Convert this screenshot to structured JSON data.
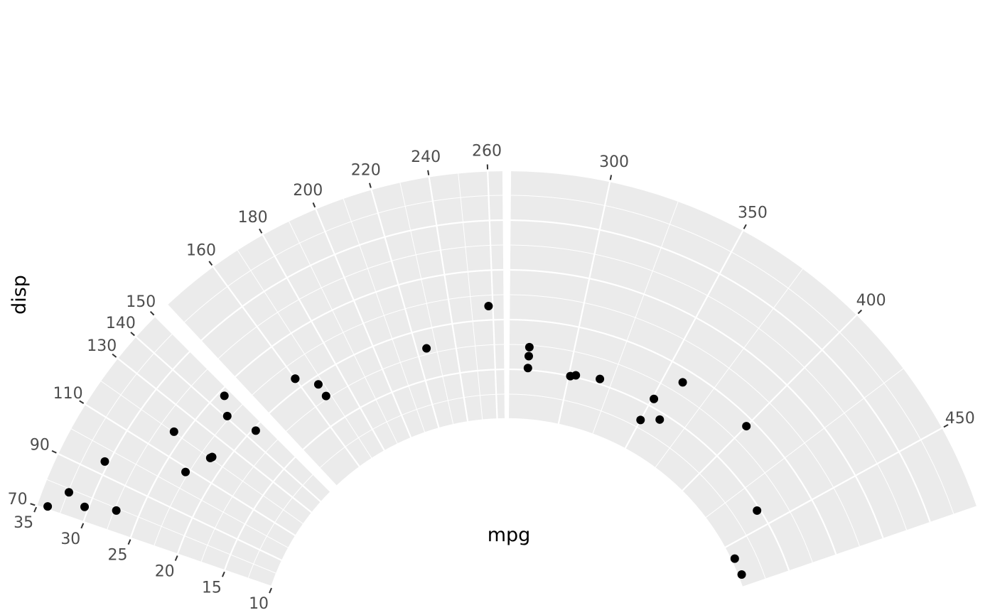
{
  "chart_data": {
    "type": "scatter",
    "coord": "polar (partial, radial-axis discontinuity)",
    "xlabel": "mpg",
    "ylabel": "disp",
    "theta_axis_label": "disp",
    "radial_axis_label": "mpg",
    "theta_breaks": [
      70,
      90,
      110,
      130,
      150,
      140,
      160,
      180,
      200,
      220,
      240,
      260,
      300,
      350,
      400,
      450
    ],
    "r_breaks": [
      35,
      30,
      25,
      20,
      15,
      10
    ],
    "grid": true,
    "background": "#ebebeb",
    "point_color": "#000000",
    "points": [
      {
        "x": 160,
        "y": 21.0
      },
      {
        "x": 160,
        "y": 21.0
      },
      {
        "x": 108,
        "y": 22.8
      },
      {
        "x": 258,
        "y": 21.4
      },
      {
        "x": 360,
        "y": 18.7
      },
      {
        "x": 225,
        "y": 18.1
      },
      {
        "x": 360,
        "y": 14.3
      },
      {
        "x": 146.7,
        "y": 24.4
      },
      {
        "x": 140.8,
        "y": 22.8
      },
      {
        "x": 167.6,
        "y": 19.2
      },
      {
        "x": 167.6,
        "y": 17.8
      },
      {
        "x": 275.8,
        "y": 16.4
      },
      {
        "x": 275.8,
        "y": 17.3
      },
      {
        "x": 275.8,
        "y": 15.2
      },
      {
        "x": 472,
        "y": 10.4
      },
      {
        "x": 460,
        "y": 10.4
      },
      {
        "x": 440,
        "y": 14.7
      },
      {
        "x": 78.7,
        "y": 32.4
      },
      {
        "x": 75.7,
        "y": 30.4
      },
      {
        "x": 71.1,
        "y": 33.9
      },
      {
        "x": 120.1,
        "y": 21.5
      },
      {
        "x": 318,
        "y": 15.5
      },
      {
        "x": 304,
        "y": 15.2
      },
      {
        "x": 350,
        "y": 13.3
      },
      {
        "x": 400,
        "y": 19.2
      },
      {
        "x": 79,
        "y": 27.3
      },
      {
        "x": 120.3,
        "y": 26.0
      },
      {
        "x": 95.1,
        "y": 30.4
      },
      {
        "x": 351,
        "y": 15.8
      },
      {
        "x": 145,
        "y": 19.7
      },
      {
        "x": 301,
        "y": 15.0
      },
      {
        "x": 121,
        "y": 21.4
      }
    ]
  }
}
